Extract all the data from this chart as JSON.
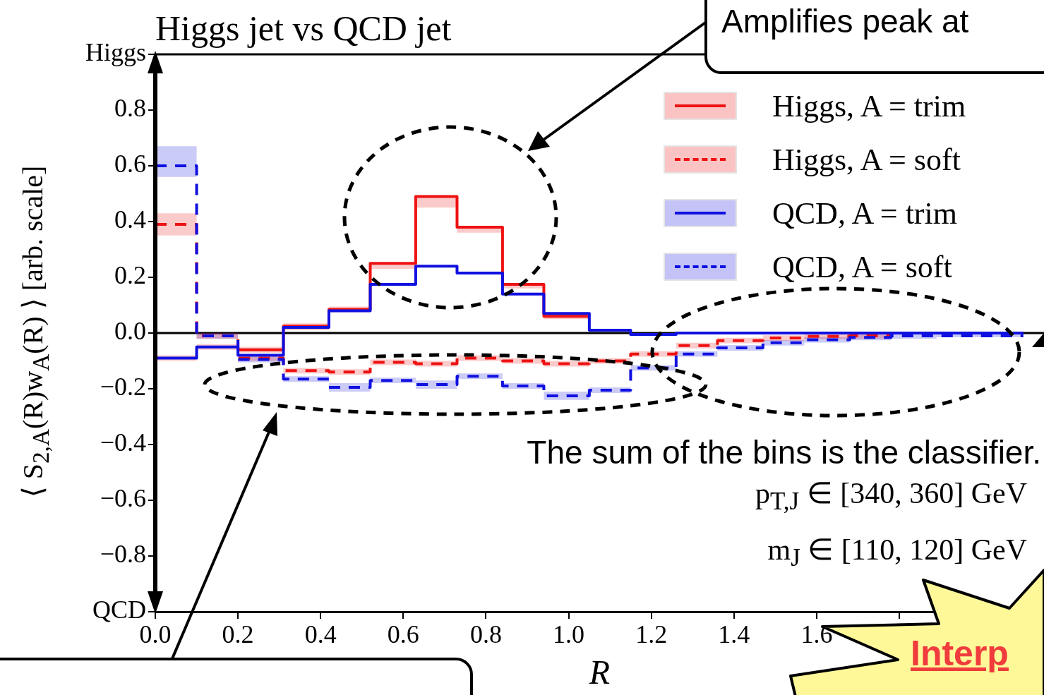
{
  "chart_data": {
    "type": "step",
    "title": "Higgs jet vs QCD jet",
    "xlabel": "R",
    "ylabel": "⟨ S$_{2,A}$(R)w$_{A}$(R) ⟩ [arb. scale]",
    "x": [
      0,
      0.1,
      0.2,
      0.31,
      0.42,
      0.52,
      0.63,
      0.73,
      0.84,
      0.94,
      1.05,
      1.15,
      1.26,
      1.36,
      1.47,
      1.57,
      1.68,
      1.78,
      1.89,
      1.99,
      2.1
    ],
    "series": [
      {
        "name": "Higgs, A = trim",
        "color": "#ee1111",
        "line_style": "solid",
        "x": [
          0,
          0.1,
          0.2,
          0.31,
          0.42,
          0.52,
          0.63,
          0.73,
          0.84,
          0.94,
          1.05
        ],
        "values": [
          null,
          null,
          -0.06,
          0.025,
          0.085,
          0.25,
          0.49,
          0.38,
          0.175,
          0.06,
          0.06
        ],
        "lower": [
          -0.1,
          -0.06,
          -0.07,
          0.01,
          0.075,
          0.23,
          0.45,
          0.36,
          0.16,
          0.05,
          0.05
        ],
        "upper": [
          -0.08,
          -0.04,
          -0.05,
          0.035,
          0.095,
          0.25,
          0.49,
          0.38,
          0.175,
          0.07,
          0.07
        ]
      },
      {
        "name": "Higgs, A = soft",
        "color": "#ee1111",
        "line_style": "dashed",
        "x": [
          0,
          0.1,
          0.2,
          0.31,
          0.42,
          0.52,
          0.63,
          0.73,
          0.84,
          0.94,
          1.05,
          1.15,
          1.26,
          1.36,
          1.47,
          1.57,
          1.68,
          1.78
        ],
        "values": [
          0.39,
          -0.01,
          -0.09,
          -0.135,
          -0.14,
          -0.105,
          -0.11,
          -0.09,
          -0.1,
          -0.11,
          -0.1,
          -0.075,
          -0.045,
          -0.027,
          -0.018,
          -0.012,
          -0.01,
          -0.01
        ],
        "lower": [
          0.35,
          -0.02,
          -0.1,
          -0.145,
          -0.15,
          -0.115,
          -0.12,
          -0.1,
          -0.11,
          -0.12,
          -0.11,
          -0.085,
          -0.055,
          -0.037,
          -0.028,
          -0.022,
          -0.02,
          -0.02
        ],
        "upper": [
          0.43,
          0,
          -0.08,
          -0.125,
          -0.13,
          -0.095,
          -0.1,
          -0.08,
          -0.09,
          -0.1,
          -0.09,
          -0.065,
          -0.035,
          -0.017,
          -0.008,
          -0.002,
          0,
          0
        ]
      },
      {
        "name": "QCD, A = trim",
        "color": "#1010e0",
        "line_style": "solid",
        "values": [
          -0.09,
          -0.05,
          -0.08,
          0.02,
          0.08,
          0.175,
          0.24,
          0.215,
          0.14,
          0.07,
          0.01,
          -0.005,
          0,
          0,
          0,
          0,
          0,
          0,
          0,
          0,
          0
        ]
      },
      {
        "name": "QCD, A = soft",
        "color": "#1010e0",
        "line_style": "dashed",
        "values": [
          0.6,
          -0.01,
          -0.095,
          -0.165,
          -0.195,
          -0.17,
          -0.185,
          -0.155,
          -0.19,
          -0.225,
          -0.205,
          -0.125,
          -0.075,
          -0.053,
          -0.035,
          -0.024,
          -0.016,
          -0.01,
          -0.01,
          -0.01,
          -0.01
        ],
        "lower": [
          0.56,
          -0.02,
          -0.105,
          -0.175,
          -0.21,
          -0.18,
          -0.2,
          -0.165,
          -0.2,
          -0.24,
          -0.215,
          -0.135,
          -0.085,
          -0.063,
          -0.045,
          -0.034,
          -0.026,
          -0.02,
          -0.015,
          -0.015,
          -0.015
        ],
        "upper": [
          0.67,
          0,
          -0.085,
          -0.155,
          -0.18,
          -0.16,
          -0.17,
          -0.145,
          -0.18,
          -0.21,
          -0.195,
          -0.115,
          -0.065,
          -0.043,
          -0.025,
          -0.014,
          -0.006,
          0,
          0.005,
          0.005,
          0.005
        ]
      }
    ],
    "xlim": [
      0,
      2.15
    ],
    "xticks": [
      {
        "value": 0,
        "label": "0.0"
      },
      0.2,
      0.4,
      0.6,
      0.8,
      {
        "value": 1,
        "label": "1.0"
      },
      1.2,
      1.4,
      1.6,
      {
        "value": 1.8,
        "label": null
      },
      {
        "value": 2,
        "label": null
      }
    ],
    "ylim": [
      -1,
      1
    ],
    "yticks": [
      {
        "value": -1,
        "label": "QCD"
      },
      {
        "value": -0.8,
        "label": "−0.8"
      },
      {
        "value": -0.6,
        "label": "−0.6"
      },
      {
        "value": -0.4,
        "label": "−0.4"
      },
      {
        "value": -0.2,
        "label": "−0.2"
      },
      {
        "value": 0,
        "label": "0.0"
      },
      0.2,
      0.4,
      0.6,
      0.8,
      {
        "value": 1,
        "label": "Higgs"
      }
    ],
    "ref_lines": [
      {
        "axis": "y",
        "value": 0,
        "color": "#000000"
      }
    ],
    "legend": "top right",
    "annotations": [
      "Amplifies peak at",
      "Interp",
      "The sum of the bins is the classifier.",
      "p$_{T,J}$ ∈ [340, 360] GeV",
      "m$_{J}$ ∈ [110, 120] GeV"
    ]
  }
}
